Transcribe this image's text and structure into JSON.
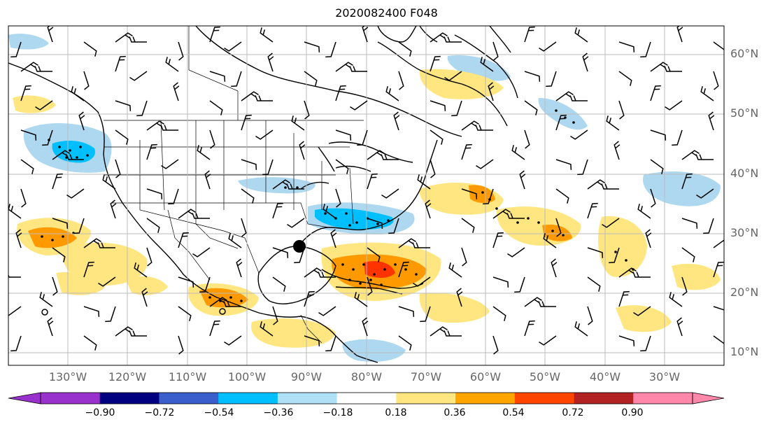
{
  "title": "2020082400 F048",
  "map": {
    "lat_ticks": [
      "60°N",
      "50°N",
      "40°N",
      "30°N",
      "20°N",
      "10°N"
    ],
    "lon_ticks": [
      "130°W",
      "120°W",
      "110°W",
      "100°W",
      "90°W",
      "80°W",
      "70°W",
      "60°W",
      "50°W",
      "40°W",
      "30°W"
    ],
    "colors": {
      "strong_negative": "#00bfff",
      "weak_negative": "#add8f0",
      "weak_positive": "#ffe680",
      "strong_positive": "#ff9900",
      "max_positive": "#ff3300"
    }
  },
  "colorbar": {
    "labels": [
      "−0.90",
      "−0.72",
      "−0.54",
      "−0.36",
      "−0.18",
      "0.18",
      "0.36",
      "0.54",
      "0.72",
      "0.90"
    ],
    "colors": [
      "#9932cc",
      "#000080",
      "#3a5fcd",
      "#00bfff",
      "#afe0f5",
      "#ffffff",
      "#ffe680",
      "#ffa500",
      "#ff4500",
      "#b22222",
      "#ff88aa",
      "#ff88aa"
    ],
    "extend_low_color": "#9932cc",
    "extend_high_color": "#ff88aa"
  }
}
